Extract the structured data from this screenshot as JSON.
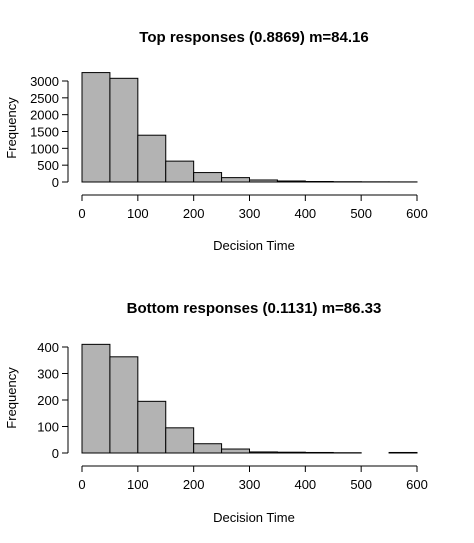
{
  "chart_data": [
    {
      "type": "bar",
      "title": "Top responses (0.8869) m=84.16",
      "xlabel": "Decision Time",
      "ylabel": "Frequency",
      "x_ticks": [
        "0",
        "100",
        "200",
        "300",
        "400",
        "500",
        "600"
      ],
      "y_ticks": [
        "0",
        "500",
        "1000",
        "1500",
        "2000",
        "2500",
        "3000"
      ],
      "xlim": [
        0,
        600
      ],
      "ylim": [
        0,
        3000
      ],
      "bin_width": 50,
      "bins": [
        {
          "start": 0,
          "end": 50,
          "count": 3250
        },
        {
          "start": 50,
          "end": 100,
          "count": 3080
        },
        {
          "start": 100,
          "end": 150,
          "count": 1390
        },
        {
          "start": 150,
          "end": 200,
          "count": 620
        },
        {
          "start": 200,
          "end": 250,
          "count": 280
        },
        {
          "start": 250,
          "end": 300,
          "count": 130
        },
        {
          "start": 300,
          "end": 350,
          "count": 60
        },
        {
          "start": 350,
          "end": 400,
          "count": 30
        },
        {
          "start": 400,
          "end": 450,
          "count": 15
        },
        {
          "start": 450,
          "end": 500,
          "count": 8
        },
        {
          "start": 500,
          "end": 550,
          "count": 5
        },
        {
          "start": 550,
          "end": 600,
          "count": 3
        }
      ],
      "bar_color": "#b3b3b3"
    },
    {
      "type": "bar",
      "title": "Bottom responses (0.1131) m=86.33",
      "xlabel": "Decision Time",
      "ylabel": "Frequency",
      "x_ticks": [
        "0",
        "100",
        "200",
        "300",
        "400",
        "500",
        "600"
      ],
      "y_ticks": [
        "0",
        "100",
        "200",
        "300",
        "400"
      ],
      "xlim": [
        0,
        600
      ],
      "ylim": [
        0,
        400
      ],
      "bin_width": 50,
      "bins": [
        {
          "start": 0,
          "end": 50,
          "count": 410
        },
        {
          "start": 50,
          "end": 100,
          "count": 363
        },
        {
          "start": 100,
          "end": 150,
          "count": 195
        },
        {
          "start": 150,
          "end": 200,
          "count": 95
        },
        {
          "start": 200,
          "end": 250,
          "count": 35
        },
        {
          "start": 250,
          "end": 300,
          "count": 15
        },
        {
          "start": 300,
          "end": 350,
          "count": 4
        },
        {
          "start": 350,
          "end": 400,
          "count": 3
        },
        {
          "start": 400,
          "end": 450,
          "count": 2
        },
        {
          "start": 450,
          "end": 500,
          "count": 1
        },
        {
          "start": 500,
          "end": 550,
          "count": 0
        },
        {
          "start": 550,
          "end": 600,
          "count": 2
        }
      ],
      "bar_color": "#b3b3b3"
    }
  ]
}
